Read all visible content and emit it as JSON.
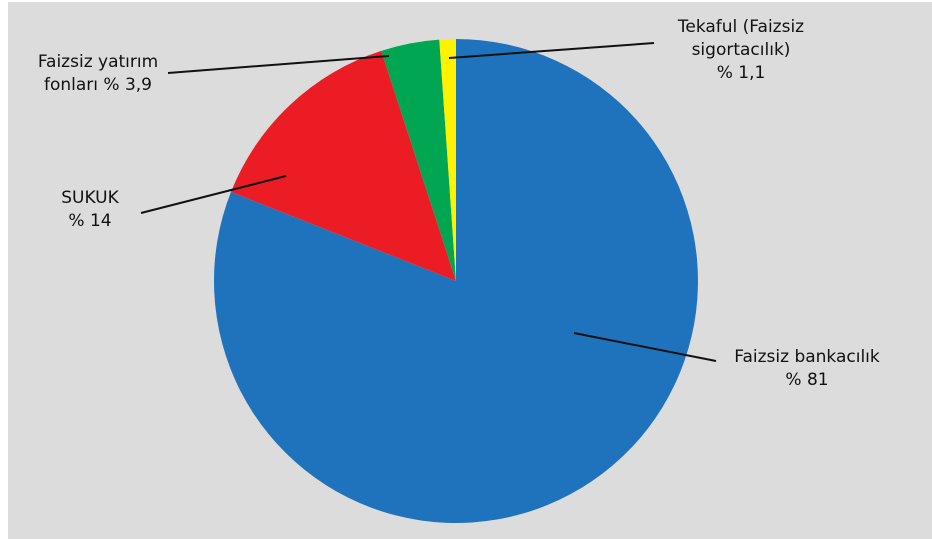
{
  "chart_data": {
    "type": "pie",
    "slices": [
      {
        "name": "Faizsiz bankacılık",
        "value": 81,
        "pct_label": "% 81",
        "color": "#1f73bd"
      },
      {
        "name": "SUKUK",
        "value": 14,
        "pct_label": "% 14",
        "color": "#ec1c24"
      },
      {
        "name": "Faizsiz yatırım fonları",
        "value": 3.9,
        "pct_label": "% 3,9",
        "color": "#00a651"
      },
      {
        "name": "Tekaful (Faizsiz sigortacılık)",
        "value": 1.1,
        "pct_label": "% 1,1",
        "color": "#fff200"
      }
    ],
    "labels": {
      "banking": [
        "Faizsiz bankacılık",
        "% 81"
      ],
      "sukuk": [
        "SUKUK",
        "% 14"
      ],
      "funds": [
        "Faizsiz yatırım",
        "fonları % 3,9"
      ],
      "takaful": [
        "Tekaful (Faizsiz",
        "sigortacılık)",
        "% 1,1"
      ]
    },
    "start_angle_deg": 0,
    "direction": "clockwise",
    "background": "#dcdcdd"
  }
}
